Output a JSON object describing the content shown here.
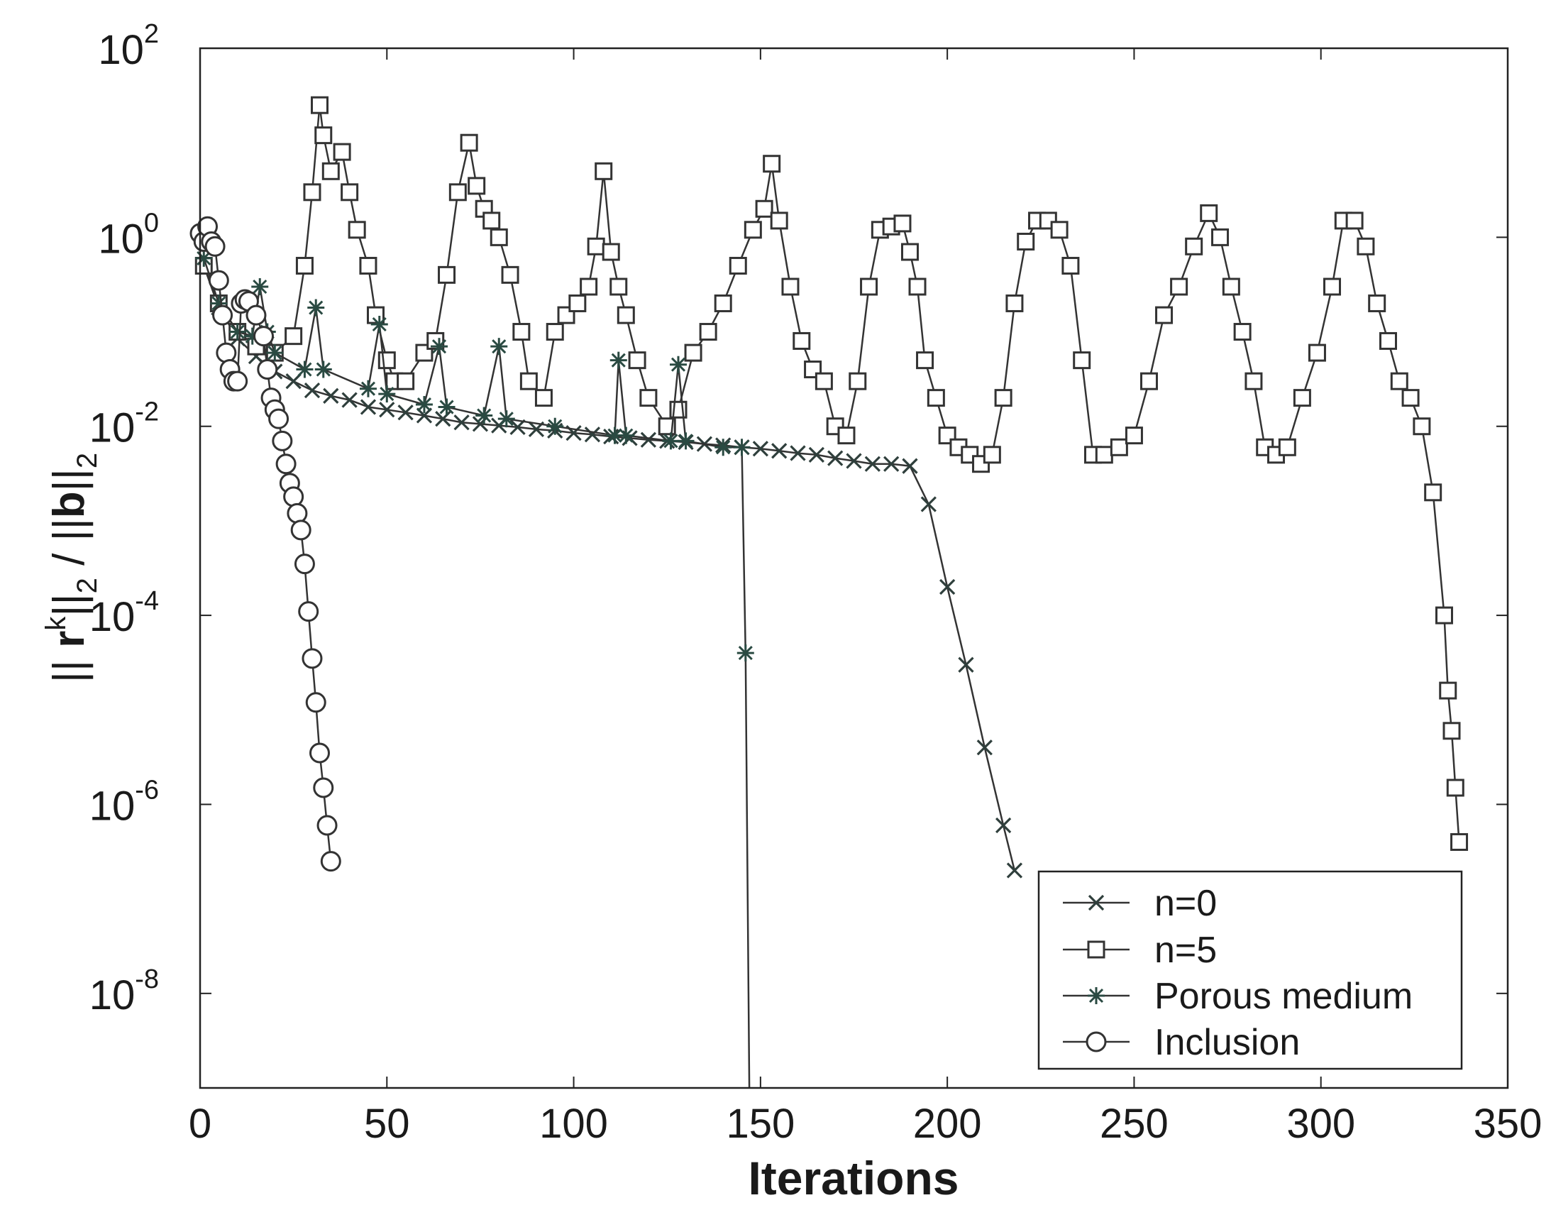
{
  "chart_data": {
    "type": "line",
    "xlabel": "Iterations",
    "ylabel_parts": [
      "|| ",
      "r",
      "k",
      "||",
      "2",
      " / ||",
      "b",
      "||",
      "2"
    ],
    "xlim": [
      0,
      350
    ],
    "ylim_log10": [
      -9,
      2
    ],
    "yscale": "log",
    "xticks": [
      0,
      50,
      100,
      150,
      200,
      250,
      300,
      350
    ],
    "xtick_labels": [
      "0",
      "50",
      "100",
      "150",
      "200",
      "250",
      "300",
      "350"
    ],
    "yticks_exp": [
      2,
      0,
      -2,
      -4,
      -6,
      -8
    ],
    "ytick_base": "10",
    "ytick_exp_labels": [
      "2",
      "0",
      "-2",
      "-4",
      "-6",
      "-8"
    ],
    "legend_position": "bottom-right",
    "colors": {
      "line": "#333333",
      "marker_cross": "#2f3f3c",
      "marker_square": "#333333",
      "marker_star": "#2a4a42",
      "marker_circle": "#333333"
    },
    "series": [
      {
        "name": "n=0",
        "marker": "x",
        "points": [
          [
            1,
            0.5
          ],
          [
            5,
            0.18
          ],
          [
            10,
            0.085
          ],
          [
            15,
            0.055
          ],
          [
            20,
            0.038
          ],
          [
            25,
            0.03
          ],
          [
            30,
            0.024
          ],
          [
            35,
            0.021
          ],
          [
            40,
            0.019
          ],
          [
            45,
            0.016
          ],
          [
            50,
            0.015
          ],
          [
            55,
            0.014
          ],
          [
            60,
            0.013
          ],
          [
            65,
            0.012
          ],
          [
            70,
            0.011
          ],
          [
            75,
            0.0106
          ],
          [
            80,
            0.0102
          ],
          [
            85,
            0.0098
          ],
          [
            90,
            0.0093
          ],
          [
            95,
            0.009
          ],
          [
            100,
            0.0085
          ],
          [
            105,
            0.0082
          ],
          [
            110,
            0.0078
          ],
          [
            115,
            0.0075
          ],
          [
            120,
            0.0072
          ],
          [
            125,
            0.007
          ],
          [
            130,
            0.0068
          ],
          [
            135,
            0.0065
          ],
          [
            140,
            0.0063
          ],
          [
            145,
            0.006
          ],
          [
            150,
            0.0058
          ],
          [
            155,
            0.0055
          ],
          [
            160,
            0.0052
          ],
          [
            165,
            0.005
          ],
          [
            170,
            0.0046
          ],
          [
            175,
            0.0043
          ],
          [
            180,
            0.004
          ],
          [
            185,
            0.004
          ],
          [
            190,
            0.0038
          ],
          [
            195,
            0.0015
          ],
          [
            200,
            0.0002
          ],
          [
            205,
            3e-05
          ],
          [
            210,
            4e-06
          ],
          [
            215,
            6e-07
          ],
          [
            218,
            2e-07
          ]
        ]
      },
      {
        "name": "n=5",
        "marker": "square",
        "points": [
          [
            1,
            0.5
          ],
          [
            5,
            0.2
          ],
          [
            10,
            0.1
          ],
          [
            15,
            0.07
          ],
          [
            20,
            0.06
          ],
          [
            25,
            0.09
          ],
          [
            28,
            0.5
          ],
          [
            30,
            3
          ],
          [
            32,
            25
          ],
          [
            33,
            12
          ],
          [
            35,
            5
          ],
          [
            38,
            8
          ],
          [
            40,
            3
          ],
          [
            42,
            1.2
          ],
          [
            45,
            0.5
          ],
          [
            47,
            0.15
          ],
          [
            50,
            0.05
          ],
          [
            52,
            0.03
          ],
          [
            55,
            0.03
          ],
          [
            60,
            0.06
          ],
          [
            63,
            0.08
          ],
          [
            66,
            0.4
          ],
          [
            69,
            3
          ],
          [
            72,
            10
          ],
          [
            74,
            3.5
          ],
          [
            76,
            2
          ],
          [
            78,
            1.5
          ],
          [
            80,
            1
          ],
          [
            83,
            0.4
          ],
          [
            86,
            0.1
          ],
          [
            88,
            0.03
          ],
          [
            92,
            0.02
          ],
          [
            95,
            0.1
          ],
          [
            98,
            0.15
          ],
          [
            101,
            0.2
          ],
          [
            104,
            0.3
          ],
          [
            106,
            0.8
          ],
          [
            108,
            5
          ],
          [
            110,
            0.7
          ],
          [
            112,
            0.3
          ],
          [
            114,
            0.15
          ],
          [
            117,
            0.05
          ],
          [
            120,
            0.02
          ],
          [
            125,
            0.01
          ],
          [
            128,
            0.015
          ],
          [
            132,
            0.06
          ],
          [
            136,
            0.1
          ],
          [
            140,
            0.2
          ],
          [
            144,
            0.5
          ],
          [
            148,
            1.2
          ],
          [
            151,
            2
          ],
          [
            153,
            6
          ],
          [
            155,
            1.5
          ],
          [
            158,
            0.3
          ],
          [
            161,
            0.08
          ],
          [
            164,
            0.04
          ],
          [
            167,
            0.03
          ],
          [
            170,
            0.01
          ],
          [
            173,
            0.008
          ],
          [
            176,
            0.03
          ],
          [
            179,
            0.3
          ],
          [
            182,
            1.2
          ],
          [
            185,
            1.3
          ],
          [
            188,
            1.4
          ],
          [
            190,
            0.7
          ],
          [
            192,
            0.3
          ],
          [
            194,
            0.05
          ],
          [
            197,
            0.02
          ],
          [
            200,
            0.008
          ],
          [
            203,
            0.006
          ],
          [
            206,
            0.005
          ],
          [
            209,
            0.004
          ],
          [
            212,
            0.005
          ],
          [
            215,
            0.02
          ],
          [
            218,
            0.2
          ],
          [
            221,
            0.9
          ],
          [
            224,
            1.5
          ],
          [
            227,
            1.5
          ],
          [
            230,
            1.2
          ],
          [
            233,
            0.5
          ],
          [
            236,
            0.05
          ],
          [
            239,
            0.005
          ],
          [
            242,
            0.005
          ],
          [
            246,
            0.006
          ],
          [
            250,
            0.008
          ],
          [
            254,
            0.03
          ],
          [
            258,
            0.15
          ],
          [
            262,
            0.3
          ],
          [
            266,
            0.8
          ],
          [
            270,
            1.8
          ],
          [
            273,
            1
          ],
          [
            276,
            0.3
          ],
          [
            279,
            0.1
          ],
          [
            282,
            0.03
          ],
          [
            285,
            0.006
          ],
          [
            288,
            0.005
          ],
          [
            291,
            0.006
          ],
          [
            295,
            0.02
          ],
          [
            299,
            0.06
          ],
          [
            303,
            0.3
          ],
          [
            306,
            1.5
          ],
          [
            309,
            1.5
          ],
          [
            312,
            0.8
          ],
          [
            315,
            0.2
          ],
          [
            318,
            0.08
          ],
          [
            321,
            0.03
          ],
          [
            324,
            0.02
          ],
          [
            327,
            0.01
          ],
          [
            330,
            0.002
          ],
          [
            333,
            0.0001
          ],
          [
            334,
            1.6e-05
          ],
          [
            335,
            6e-06
          ],
          [
            336,
            1.5e-06
          ],
          [
            337,
            4e-07
          ]
        ]
      },
      {
        "name": "Porous medium",
        "marker": "star",
        "points": [
          [
            1,
            0.6
          ],
          [
            5,
            0.2
          ],
          [
            10,
            0.1
          ],
          [
            14,
            0.09
          ],
          [
            16,
            0.3
          ],
          [
            18,
            0.1
          ],
          [
            20,
            0.06
          ],
          [
            28,
            0.04
          ],
          [
            31,
            0.18
          ],
          [
            33,
            0.04
          ],
          [
            45,
            0.025
          ],
          [
            48,
            0.12
          ],
          [
            50,
            0.022
          ],
          [
            60,
            0.017
          ],
          [
            64,
            0.07
          ],
          [
            66,
            0.016
          ],
          [
            76,
            0.013
          ],
          [
            80,
            0.07
          ],
          [
            82,
            0.012
          ],
          [
            95,
            0.01
          ],
          [
            111,
            0.008
          ],
          [
            112,
            0.05
          ],
          [
            114,
            0.008
          ],
          [
            126,
            0.007
          ],
          [
            128,
            0.045
          ],
          [
            130,
            0.007
          ],
          [
            140,
            0.006
          ],
          [
            145,
            0.006
          ],
          [
            146,
            4e-05
          ],
          [
            147,
            1e-09
          ]
        ]
      },
      {
        "name": "Inclusion",
        "marker": "circle",
        "points": [
          [
            0,
            1.1
          ],
          [
            1,
            0.9
          ],
          [
            2,
            1.3
          ],
          [
            3,
            0.9
          ],
          [
            4,
            0.8
          ],
          [
            5,
            0.35
          ],
          [
            6,
            0.15
          ],
          [
            7,
            0.06
          ],
          [
            8,
            0.04
          ],
          [
            9,
            0.03
          ],
          [
            10,
            0.03
          ],
          [
            11,
            0.2
          ],
          [
            12,
            0.22
          ],
          [
            13,
            0.21
          ],
          [
            15,
            0.15
          ],
          [
            17,
            0.09
          ],
          [
            18,
            0.04
          ],
          [
            19,
            0.02
          ],
          [
            20,
            0.015
          ],
          [
            21,
            0.012
          ],
          [
            22,
            0.007
          ],
          [
            23,
            0.004
          ],
          [
            24,
            0.0025
          ],
          [
            25,
            0.0018
          ],
          [
            26,
            0.0012
          ],
          [
            27,
            0.0008
          ],
          [
            28,
            0.00035
          ],
          [
            29,
            0.00011
          ],
          [
            30,
            3.5e-05
          ],
          [
            31,
            1.2e-05
          ],
          [
            32,
            3.5e-06
          ],
          [
            33,
            1.5e-06
          ],
          [
            34,
            6e-07
          ],
          [
            35,
            2.5e-07
          ]
        ]
      }
    ]
  }
}
